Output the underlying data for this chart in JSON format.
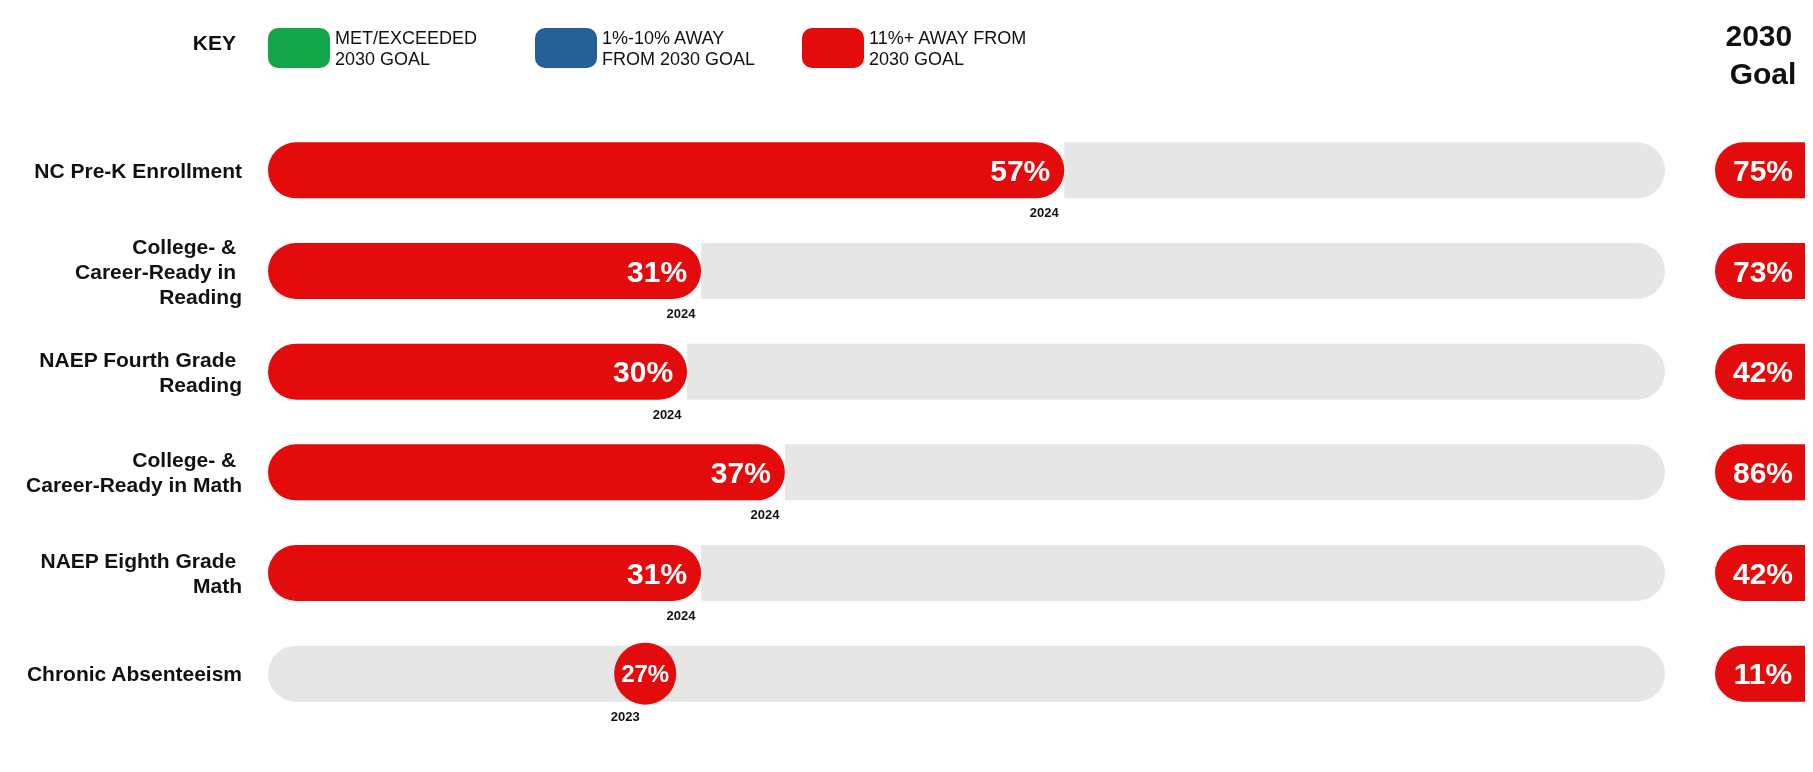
{
  "chart_data": {
    "type": "bar",
    "orientation": "horizontal",
    "xlim": [
      0,
      100
    ],
    "tick_labels": "y",
    "categories": [
      "NC Pre-K Enrollment",
      "College- & Career-Ready in Reading",
      "NAEP Fourth Grade Reading",
      "College- & Career-Ready in Math",
      "NAEP Eighth Grade Math",
      "Chronic Absenteeism"
    ],
    "stacked": true,
    "legend_title": "KEY",
    "legend": "top",
    "y2label": "2030 Goal",
    "series": [
      {
        "name": "MET/EXCEEDED 2030 GOAL",
        "color": "#12a54a",
        "values": [
          null,
          null,
          null,
          null,
          null,
          null
        ]
      },
      {
        "name": "1%-10% AWAY FROM 2030 GOAL",
        "color": "#245f97",
        "values": [
          null,
          null,
          null,
          null,
          null,
          null
        ]
      },
      {
        "name": "11%+ AWAY FROM 2030 GOAL",
        "color": "#e30b0b",
        "values": [
          57,
          31,
          30,
          37,
          31,
          null
        ],
        "value_labels": [
          "57%",
          "31%",
          "30%",
          "37%",
          "31%",
          null
        ]
      },
      {
        "color": "#e6e6e6",
        "values": [
          43,
          69,
          70,
          63,
          69,
          100
        ]
      },
      {
        "type": "scatter",
        "color": "#e30b0b",
        "values": [
          null,
          null,
          null,
          null,
          null,
          27
        ],
        "value_labels": [
          null,
          null,
          null,
          null,
          null,
          "27%"
        ]
      }
    ],
    "annotations": [
      {
        "text": "2024",
        "x": 57,
        "y": "NC Pre-K Enrollment"
      },
      {
        "text": "2024",
        "x": 31,
        "y": "College- & Career-Ready in Reading"
      },
      {
        "text": "2024",
        "x": 30,
        "y": "NAEP Fourth Grade Reading"
      },
      {
        "text": "2024",
        "x": 37,
        "y": "College- & Career-Ready in Math"
      },
      {
        "text": "2024",
        "x": 31,
        "y": "NAEP Eighth Grade Math"
      },
      {
        "text": "2023",
        "x": 27,
        "y": "Chronic Absenteeism"
      },
      "75%",
      "73%",
      "42%",
      "86%",
      "42%",
      "11%"
    ]
  }
}
